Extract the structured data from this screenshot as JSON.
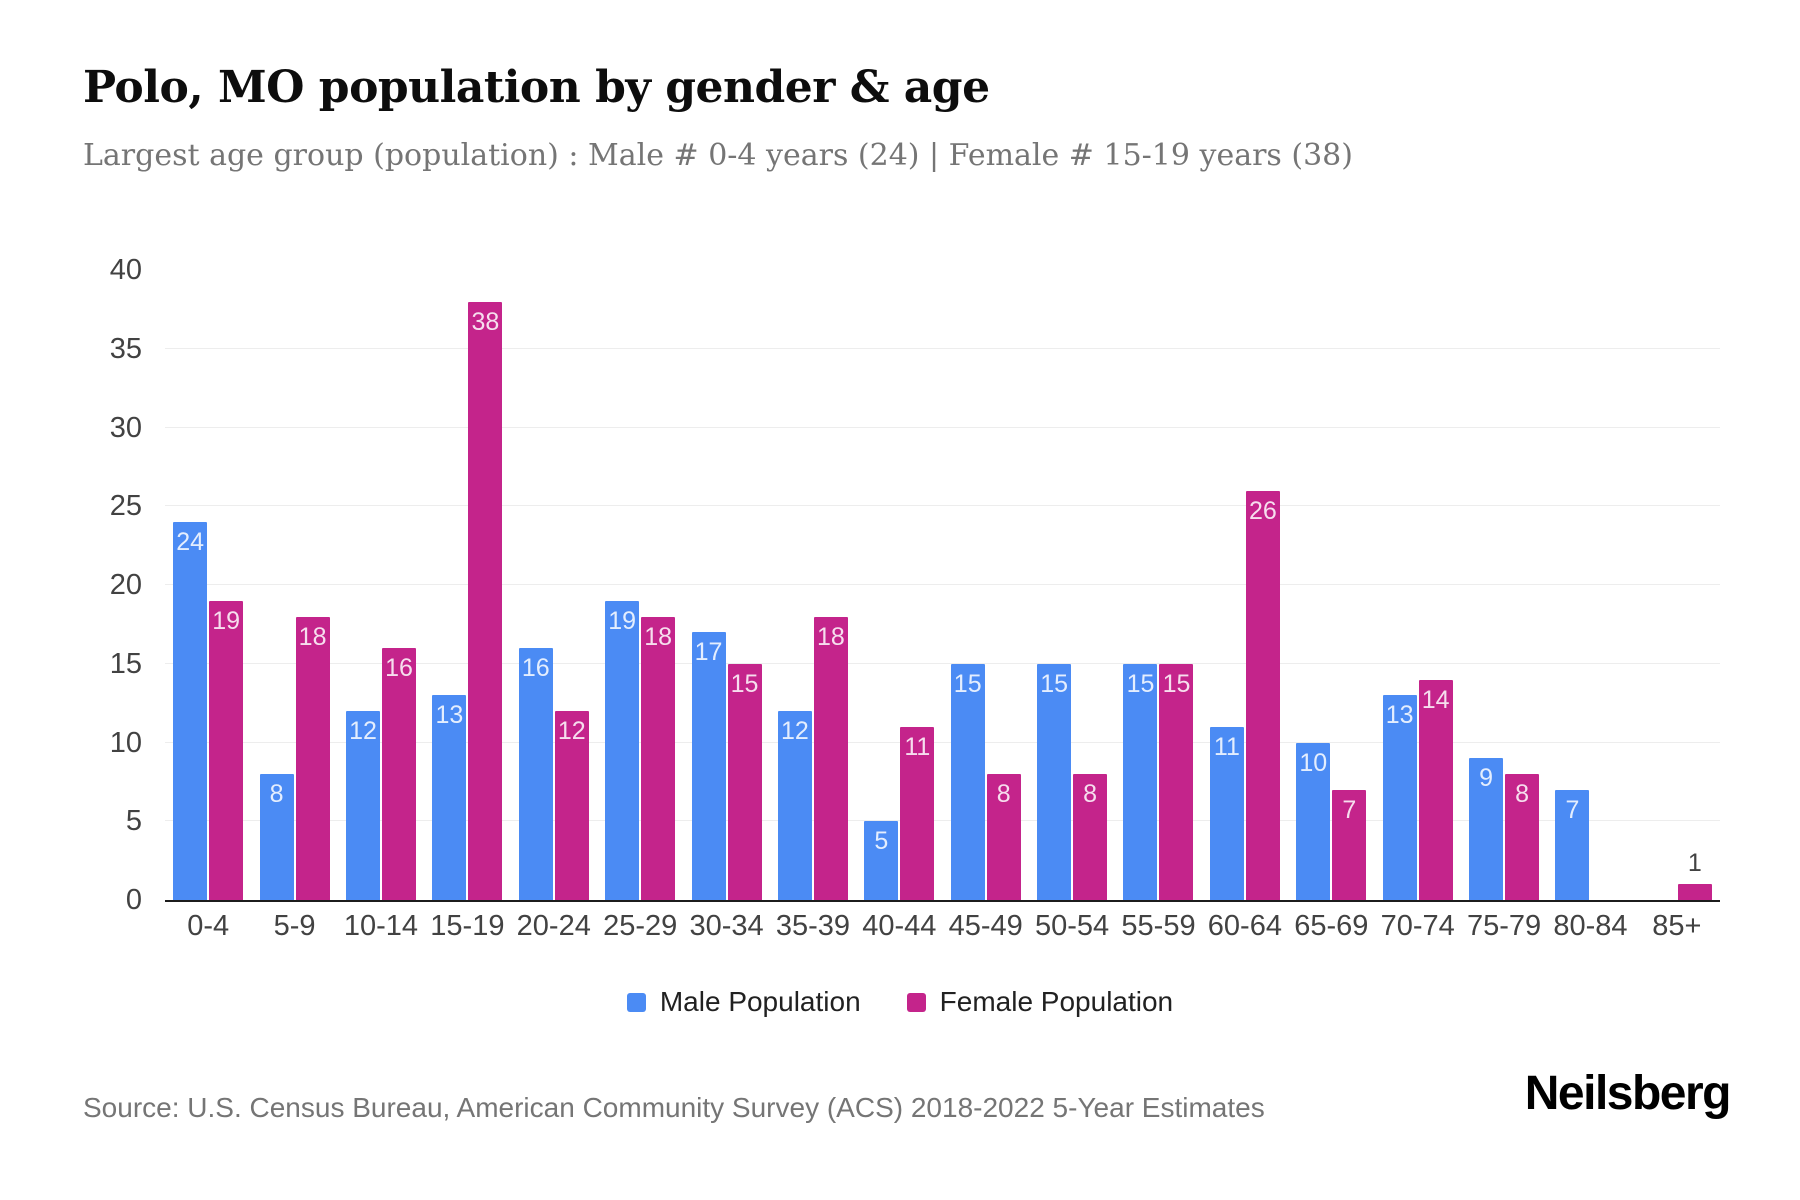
{
  "header": {
    "title": "Polo, MO population by gender & age",
    "subtitle": "Largest age group (population) : Male # 0-4 years (24) | Female # 15-19 years (38)"
  },
  "chart_data": {
    "type": "bar",
    "title": "Polo, MO population by gender & age",
    "categories": [
      "0-4",
      "5-9",
      "10-14",
      "15-19",
      "20-24",
      "25-29",
      "30-34",
      "35-39",
      "40-44",
      "45-49",
      "50-54",
      "55-59",
      "60-64",
      "65-69",
      "70-74",
      "75-79",
      "80-84",
      "85+"
    ],
    "series": [
      {
        "name": "Male Population",
        "color": "#4b8bf4",
        "values": [
          24,
          8,
          12,
          13,
          16,
          19,
          17,
          12,
          5,
          15,
          15,
          15,
          11,
          10,
          13,
          9,
          7,
          0
        ]
      },
      {
        "name": "Female Population",
        "color": "#c4248b",
        "values": [
          19,
          18,
          16,
          38,
          12,
          18,
          15,
          18,
          11,
          8,
          8,
          15,
          26,
          7,
          14,
          8,
          0,
          1
        ]
      }
    ],
    "xlabel": "",
    "ylabel": "",
    "ylim": [
      0,
      40
    ],
    "yticks": [
      0,
      5,
      10,
      15,
      20,
      25,
      30,
      35,
      40
    ],
    "grid": true,
    "legend_position": "bottom",
    "value_labels": true
  },
  "colors": {
    "male": "#4b8bf4",
    "female": "#c4248b",
    "gridline": "#ededed",
    "axis_line": "#1c1c1c",
    "tick_text": "#424242",
    "subtitle_text": "#757575"
  },
  "footer": {
    "source": "Source: U.S. Census Bureau, American Community Survey (ACS) 2018-2022 5-Year Estimates",
    "brand": "Neilsberg"
  }
}
